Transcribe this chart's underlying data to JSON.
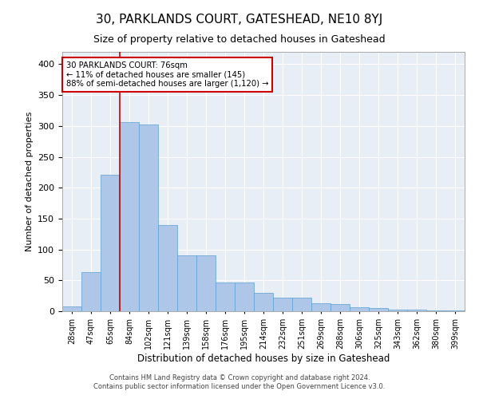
{
  "title": "30, PARKLANDS COURT, GATESHEAD, NE10 8YJ",
  "subtitle": "Size of property relative to detached houses in Gateshead",
  "xlabel": "Distribution of detached houses by size in Gateshead",
  "ylabel": "Number of detached properties",
  "categories": [
    "28sqm",
    "47sqm",
    "65sqm",
    "84sqm",
    "102sqm",
    "121sqm",
    "139sqm",
    "158sqm",
    "176sqm",
    "195sqm",
    "214sqm",
    "232sqm",
    "251sqm",
    "269sqm",
    "288sqm",
    "306sqm",
    "325sqm",
    "343sqm",
    "362sqm",
    "380sqm",
    "399sqm"
  ],
  "bar_heights": [
    8,
    63,
    221,
    306,
    303,
    140,
    90,
    90,
    46,
    46,
    30,
    22,
    22,
    13,
    11,
    6,
    5,
    3,
    2,
    1,
    1
  ],
  "bar_color": "#aec6e8",
  "bar_edge_color": "#5a9fd4",
  "vline_x": 2.5,
  "vline_color": "#cc0000",
  "annotation_text": "30 PARKLANDS COURT: 76sqm\n← 11% of detached houses are smaller (145)\n88% of semi-detached houses are larger (1,120) →",
  "annotation_box_color": "#ffffff",
  "annotation_box_edge": "#cc0000",
  "ylim": [
    0,
    420
  ],
  "yticks": [
    0,
    50,
    100,
    150,
    200,
    250,
    300,
    350,
    400
  ],
  "bg_color": "#e8eef6",
  "footer1": "Contains HM Land Registry data © Crown copyright and database right 2024.",
  "footer2": "Contains public sector information licensed under the Open Government Licence v3.0.",
  "title_fontsize": 11,
  "subtitle_fontsize": 9
}
